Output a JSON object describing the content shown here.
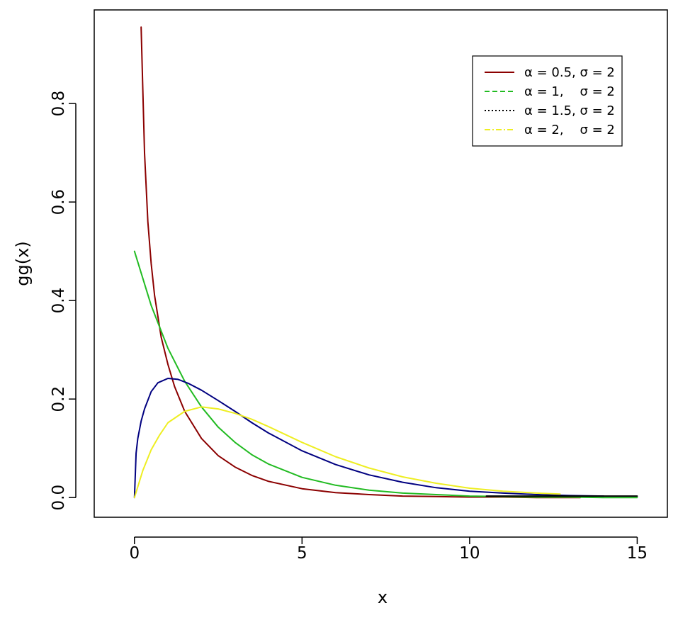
{
  "chart_data": {
    "type": "line",
    "xlabel": "x",
    "ylabel": "gg(x)",
    "xlim": [
      -1.2,
      15.9
    ],
    "ylim": [
      -0.04,
      0.99
    ],
    "xticks": [
      0,
      5,
      10,
      15
    ],
    "xtick_labels": [
      "0",
      "5",
      "10",
      "15"
    ],
    "yticks": [
      0.0,
      0.2,
      0.4,
      0.6,
      0.8
    ],
    "ytick_labels": [
      "0.0",
      "0.2",
      "0.4",
      "0.6",
      "0.8"
    ],
    "grid": false,
    "legend_position": "top-right",
    "series": [
      {
        "name": "α = 0.5, σ = 2",
        "color": "#8b0000",
        "style": "solid",
        "x": [
          0.2,
          0.3,
          0.4,
          0.5,
          0.6,
          0.8,
          1.0,
          1.2,
          1.5,
          2.0,
          2.5,
          3.0,
          3.5,
          4.0,
          5.0,
          6.0,
          7.0,
          8.0,
          9.0,
          10.0,
          11.0,
          12.0,
          13.3
        ],
        "y": [
          0.955,
          0.7,
          0.56,
          0.475,
          0.41,
          0.325,
          0.27,
          0.225,
          0.175,
          0.12,
          0.085,
          0.062,
          0.045,
          0.033,
          0.018,
          0.01,
          0.006,
          0.003,
          0.002,
          0.001,
          0.001,
          0.0,
          0.0
        ]
      },
      {
        "name": "α = 1,    σ = 2",
        "color": "#22bb22",
        "style": "solid",
        "x": [
          0,
          0.5,
          1.0,
          1.5,
          2.0,
          2.5,
          3.0,
          3.5,
          4.0,
          5.0,
          6.0,
          7.0,
          8.0,
          9.0,
          10.0,
          11.0,
          12.0,
          13.0,
          14.0,
          15.0
        ],
        "y": [
          0.5,
          0.39,
          0.303,
          0.236,
          0.184,
          0.143,
          0.112,
          0.087,
          0.068,
          0.041,
          0.025,
          0.015,
          0.009,
          0.006,
          0.003,
          0.002,
          0.001,
          0.001,
          0.0,
          0.0
        ]
      },
      {
        "name": "α = 1.5, σ = 2",
        "color": "#000080",
        "style": "solid",
        "x": [
          0,
          0.05,
          0.1,
          0.2,
          0.3,
          0.5,
          0.7,
          1.0,
          1.3,
          1.6,
          2.0,
          2.5,
          3.0,
          3.5,
          4.0,
          5.0,
          6.0,
          7.0,
          8.0,
          9.0,
          10.0,
          11.0,
          12.0,
          13.0,
          14.0
        ],
        "y": [
          0.0,
          0.09,
          0.12,
          0.155,
          0.18,
          0.215,
          0.233,
          0.242,
          0.24,
          0.232,
          0.218,
          0.197,
          0.175,
          0.152,
          0.131,
          0.095,
          0.067,
          0.046,
          0.031,
          0.02,
          0.013,
          0.009,
          0.006,
          0.004,
          0.003
        ]
      },
      {
        "name": "α = 2,    σ = 2",
        "color": "#eeee22",
        "style": "solid",
        "x": [
          0,
          0.25,
          0.5,
          0.75,
          1.0,
          1.5,
          2.0,
          2.5,
          3.0,
          3.5,
          4.0,
          5.0,
          6.0,
          7.0,
          8.0,
          9.0,
          10.0,
          11.0,
          12.0,
          12.7
        ],
        "y": [
          0.0,
          0.055,
          0.097,
          0.127,
          0.152,
          0.175,
          0.184,
          0.18,
          0.171,
          0.159,
          0.144,
          0.112,
          0.083,
          0.06,
          0.042,
          0.029,
          0.019,
          0.013,
          0.009,
          0.007
        ]
      },
      {
        "name": "",
        "color": "#000000",
        "style": "solid",
        "x": [
          10.5,
          11.0,
          12.0,
          13.0,
          14.0,
          15.0
        ],
        "y": [
          0.003,
          0.003,
          0.003,
          0.003,
          0.003,
          0.003
        ]
      }
    ],
    "legend": [
      {
        "label": "α = 0.5, σ = 2",
        "color": "#8b0000",
        "dash": ""
      },
      {
        "label": "α = 1,    σ = 2",
        "color": "#22bb22",
        "dash": "7,4"
      },
      {
        "label": "α = 1.5, σ = 2",
        "color": "#000000",
        "dash": "2,3"
      },
      {
        "label": "α = 2,    σ = 2",
        "color": "#eeee22",
        "dash": "8,3,2,3"
      }
    ]
  }
}
